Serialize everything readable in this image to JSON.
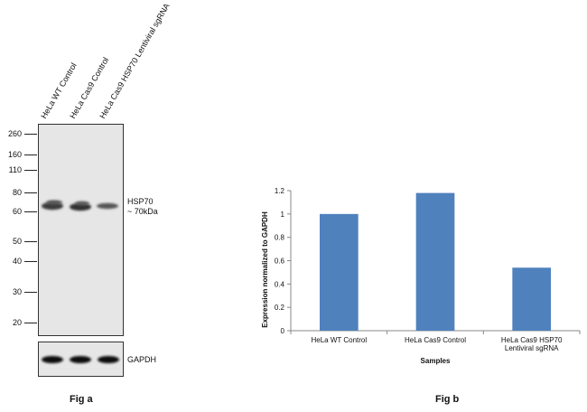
{
  "fig_a": {
    "caption": "Fig a",
    "lanes": [
      "HeLa WT Control",
      "HeLa Cas9 Control",
      "HeLa Cas9 HSP70 Lentiviral sgRNA"
    ],
    "mw_markers": [
      "260",
      "160",
      "110",
      "80",
      "60",
      "50",
      "40",
      "30",
      "20"
    ],
    "target_label": "HSP70",
    "target_size": "~ 70kDa",
    "loading_control": "GAPDH"
  },
  "fig_b": {
    "caption": "Fig b"
  },
  "chart_data": {
    "type": "bar",
    "categories": [
      "HeLa WT Control",
      "HeLa Cas9 Control",
      "HeLa Cas9 HSP70 Lentiviral sgRNA"
    ],
    "category_lines": [
      [
        "HeLa WT Control"
      ],
      [
        "HeLa Cas9 Control"
      ],
      [
        "HeLa Cas9 HSP70",
        "Lentiviral sgRNA"
      ]
    ],
    "values": [
      1.0,
      1.18,
      0.54
    ],
    "xlabel": "Samples",
    "ylabel": "Expression  normalized to GAPDH",
    "ylim": [
      0,
      1.2
    ],
    "yticks": [
      "0",
      "0.2",
      "0.4",
      "0.6",
      "0.8",
      "1",
      "1.2"
    ],
    "color": "#4f81bd",
    "grid": false
  }
}
